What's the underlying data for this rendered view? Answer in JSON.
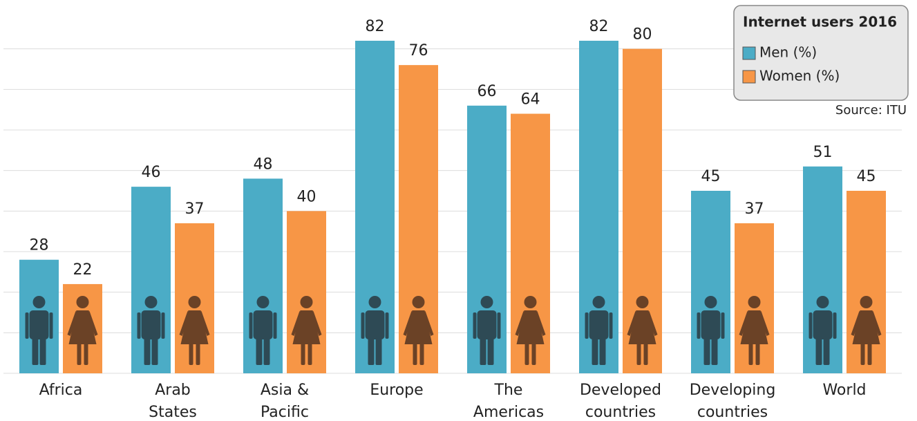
{
  "chart_data": {
    "type": "bar",
    "legend_title": "Internet users 2016",
    "source": "Source: ITU",
    "categories": [
      "Africa",
      "Arab\nStates",
      "Asia &\nPacific",
      "Europe",
      "The\nAmericas",
      "Developed\ncountries",
      "Developing\ncountries",
      "World"
    ],
    "series": [
      {
        "name": "Men (%)",
        "color": "#4bacc6",
        "values": [
          28,
          46,
          48,
          82,
          66,
          82,
          45,
          51
        ]
      },
      {
        "name": "Women (%)",
        "color": "#f79646",
        "values": [
          22,
          37,
          40,
          76,
          64,
          80,
          37,
          45
        ]
      }
    ],
    "ylim": [
      0,
      90
    ],
    "yticks": [
      0,
      10,
      20,
      30,
      40,
      50,
      60,
      70,
      80
    ],
    "grid": true,
    "legend": "upper right"
  }
}
